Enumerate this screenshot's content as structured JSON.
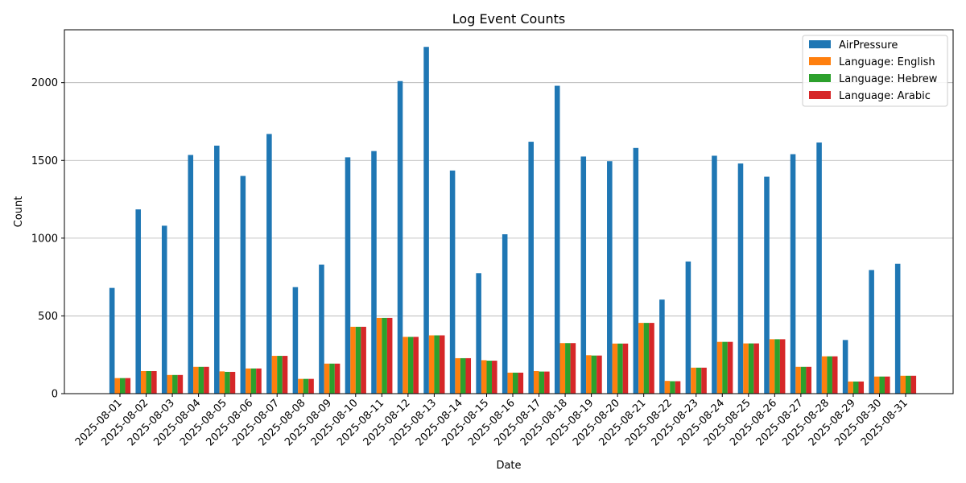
{
  "chart_data": {
    "type": "bar",
    "title": "Log Event Counts",
    "xlabel": "Date",
    "ylabel": "Count",
    "ylim": [
      0,
      2340
    ],
    "yticks": [
      0,
      500,
      1000,
      1500,
      2000
    ],
    "grid": "y",
    "legend_position": "top-right",
    "categories": [
      "2025-08-01",
      "2025-08-02",
      "2025-08-03",
      "2025-08-04",
      "2025-08-05",
      "2025-08-06",
      "2025-08-07",
      "2025-08-08",
      "2025-08-09",
      "2025-08-10",
      "2025-08-11",
      "2025-08-12",
      "2025-08-13",
      "2025-08-14",
      "2025-08-15",
      "2025-08-16",
      "2025-08-17",
      "2025-08-18",
      "2025-08-19",
      "2025-08-20",
      "2025-08-21",
      "2025-08-22",
      "2025-08-23",
      "2025-08-24",
      "2025-08-25",
      "2025-08-26",
      "2025-08-27",
      "2025-08-28",
      "2025-08-29",
      "2025-08-30",
      "2025-08-31"
    ],
    "series": [
      {
        "name": "AirPressure",
        "color": "#1f77b4",
        "values": [
          680,
          1185,
          1080,
          1535,
          1595,
          1400,
          1670,
          685,
          830,
          1520,
          1560,
          2010,
          2230,
          1435,
          775,
          1025,
          1620,
          1980,
          1525,
          1495,
          1580,
          605,
          850,
          1530,
          1480,
          1395,
          1540,
          1615,
          345,
          795,
          835
        ]
      },
      {
        "name": "Language: English",
        "color": "#ff7f0e",
        "values": [
          100,
          145,
          120,
          172,
          143,
          162,
          243,
          95,
          193,
          430,
          487,
          365,
          375,
          228,
          215,
          135,
          145,
          325,
          247,
          322,
          455,
          82,
          167,
          333,
          323,
          350,
          172,
          240,
          78,
          110,
          115
        ]
      },
      {
        "name": "Language: Hebrew",
        "color": "#2ca02c",
        "values": [
          100,
          145,
          120,
          172,
          140,
          162,
          243,
          95,
          193,
          430,
          487,
          365,
          375,
          228,
          212,
          135,
          142,
          325,
          245,
          322,
          455,
          80,
          167,
          333,
          323,
          350,
          172,
          240,
          78,
          110,
          115
        ]
      },
      {
        "name": "Language: Arabic",
        "color": "#d62728",
        "values": [
          100,
          145,
          120,
          172,
          140,
          162,
          243,
          95,
          193,
          430,
          487,
          365,
          375,
          228,
          212,
          135,
          142,
          325,
          245,
          322,
          455,
          80,
          167,
          333,
          323,
          350,
          172,
          240,
          78,
          110,
          115
        ]
      }
    ]
  }
}
